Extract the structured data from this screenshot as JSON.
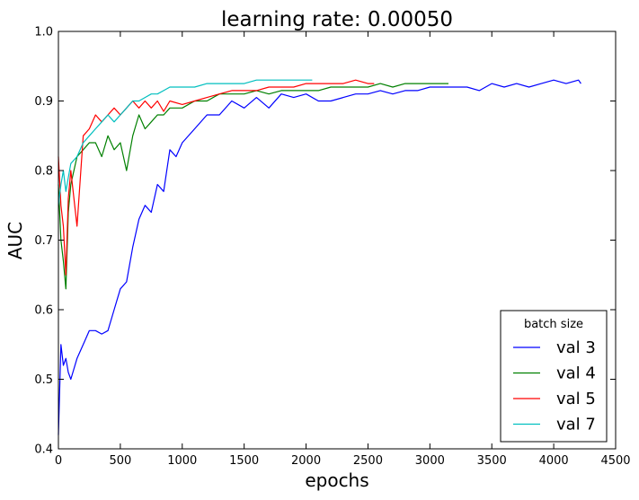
{
  "chart_data": {
    "type": "line",
    "title": "learning rate: 0.00050",
    "xlabel": "epochs",
    "ylabel": "AUC",
    "xlim": [
      0,
      4500
    ],
    "ylim": [
      0.4,
      1.0
    ],
    "x_ticks": [
      "0",
      "500",
      "1000",
      "1500",
      "2000",
      "2500",
      "3000",
      "3500",
      "4000",
      "4500"
    ],
    "y_ticks": [
      "0.4",
      "0.5",
      "0.6",
      "0.7",
      "0.8",
      "0.9",
      "1.0"
    ],
    "grid": false,
    "legend": {
      "title": "batch size",
      "position": "lower-right"
    },
    "series": [
      {
        "name": "val 3",
        "color": "#0000ff",
        "x": [
          0,
          20,
          40,
          60,
          80,
          100,
          150,
          200,
          250,
          300,
          350,
          400,
          450,
          500,
          550,
          600,
          650,
          700,
          750,
          800,
          850,
          900,
          950,
          1000,
          1100,
          1200,
          1300,
          1400,
          1500,
          1600,
          1700,
          1800,
          1900,
          2000,
          2100,
          2200,
          2300,
          2400,
          2500,
          2600,
          2700,
          2800,
          2900,
          3000,
          3100,
          3200,
          3300,
          3400,
          3500,
          3600,
          3700,
          3800,
          3900,
          4000,
          4100,
          4200,
          4220
        ],
        "y": [
          0.42,
          0.55,
          0.52,
          0.53,
          0.51,
          0.5,
          0.53,
          0.55,
          0.57,
          0.57,
          0.565,
          0.57,
          0.6,
          0.63,
          0.64,
          0.69,
          0.73,
          0.75,
          0.74,
          0.78,
          0.77,
          0.83,
          0.82,
          0.84,
          0.86,
          0.88,
          0.88,
          0.9,
          0.89,
          0.905,
          0.89,
          0.91,
          0.905,
          0.91,
          0.9,
          0.9,
          0.905,
          0.91,
          0.91,
          0.915,
          0.91,
          0.915,
          0.915,
          0.92,
          0.92,
          0.92,
          0.92,
          0.915,
          0.925,
          0.92,
          0.925,
          0.92,
          0.925,
          0.93,
          0.925,
          0.93,
          0.925
        ]
      },
      {
        "name": "val 4",
        "color": "#008000",
        "x": [
          0,
          20,
          40,
          60,
          80,
          100,
          150,
          200,
          250,
          300,
          350,
          400,
          450,
          500,
          550,
          600,
          650,
          700,
          750,
          800,
          850,
          900,
          1000,
          1100,
          1200,
          1300,
          1400,
          1500,
          1600,
          1700,
          1800,
          1900,
          2000,
          2100,
          2200,
          2300,
          2400,
          2500,
          2600,
          2700,
          2800,
          2900,
          3000,
          3100,
          3150
        ],
        "y": [
          0.78,
          0.7,
          0.67,
          0.63,
          0.74,
          0.78,
          0.82,
          0.83,
          0.84,
          0.84,
          0.82,
          0.85,
          0.83,
          0.84,
          0.8,
          0.85,
          0.88,
          0.86,
          0.87,
          0.88,
          0.88,
          0.89,
          0.89,
          0.9,
          0.9,
          0.91,
          0.91,
          0.91,
          0.915,
          0.91,
          0.915,
          0.915,
          0.915,
          0.915,
          0.92,
          0.92,
          0.92,
          0.92,
          0.925,
          0.92,
          0.925,
          0.925,
          0.925,
          0.925,
          0.925
        ]
      },
      {
        "name": "val 5",
        "color": "#ff0000",
        "x": [
          0,
          20,
          40,
          60,
          80,
          100,
          150,
          200,
          250,
          300,
          350,
          400,
          450,
          500,
          550,
          600,
          650,
          700,
          750,
          800,
          850,
          900,
          1000,
          1100,
          1200,
          1300,
          1400,
          1500,
          1600,
          1700,
          1800,
          1900,
          2000,
          2100,
          2200,
          2300,
          2400,
          2500,
          2550
        ],
        "y": [
          0.82,
          0.75,
          0.72,
          0.65,
          0.76,
          0.8,
          0.72,
          0.85,
          0.86,
          0.88,
          0.87,
          0.88,
          0.89,
          0.88,
          0.89,
          0.9,
          0.89,
          0.9,
          0.89,
          0.9,
          0.885,
          0.9,
          0.895,
          0.9,
          0.905,
          0.91,
          0.915,
          0.915,
          0.915,
          0.92,
          0.92,
          0.92,
          0.925,
          0.925,
          0.925,
          0.925,
          0.93,
          0.925,
          0.925
        ]
      },
      {
        "name": "val 7",
        "color": "#00bfbf",
        "x": [
          0,
          20,
          40,
          60,
          80,
          100,
          150,
          200,
          250,
          300,
          350,
          400,
          450,
          500,
          550,
          600,
          650,
          700,
          750,
          800,
          850,
          900,
          1000,
          1100,
          1200,
          1300,
          1400,
          1500,
          1600,
          1700,
          1800,
          1900,
          2000,
          2050
        ],
        "y": [
          0.75,
          0.78,
          0.8,
          0.77,
          0.79,
          0.81,
          0.82,
          0.84,
          0.85,
          0.86,
          0.87,
          0.88,
          0.87,
          0.88,
          0.89,
          0.9,
          0.9,
          0.905,
          0.91,
          0.91,
          0.915,
          0.92,
          0.92,
          0.92,
          0.925,
          0.925,
          0.925,
          0.925,
          0.93,
          0.93,
          0.93,
          0.93,
          0.93,
          0.93
        ]
      }
    ]
  }
}
